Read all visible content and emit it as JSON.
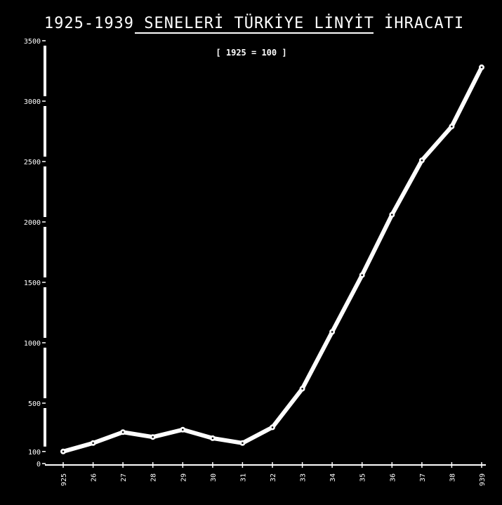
{
  "chart_data": {
    "type": "line",
    "title": "1925-1939 SENELERİ TÜRKİYE LİNYİT İHRACATI",
    "subtitle": "[ 1925 = 100 ]",
    "xlabel": "",
    "ylabel": "",
    "x_tick_labels": [
      "925",
      "26",
      "27",
      "28",
      "29",
      "30",
      "31",
      "32",
      "33",
      "34",
      "35",
      "36",
      "37",
      "38",
      "939"
    ],
    "y_tick_labels": [
      "0",
      "100",
      "500",
      "1000",
      "1500",
      "2000",
      "2500",
      "3000",
      "3500"
    ],
    "y_ticks": [
      0,
      100,
      500,
      1000,
      1500,
      2000,
      2500,
      3000,
      3500
    ],
    "ylim": [
      0,
      3500
    ],
    "grid": false,
    "series": [
      {
        "values": [
          100,
          170,
          260,
          220,
          280,
          210,
          170,
          300,
          620,
          1090,
          1560,
          2060,
          2510,
          2790,
          3280
        ]
      }
    ],
    "colors": {
      "background": "#000000",
      "line": "#ffffff",
      "text": "#ffffff"
    }
  }
}
